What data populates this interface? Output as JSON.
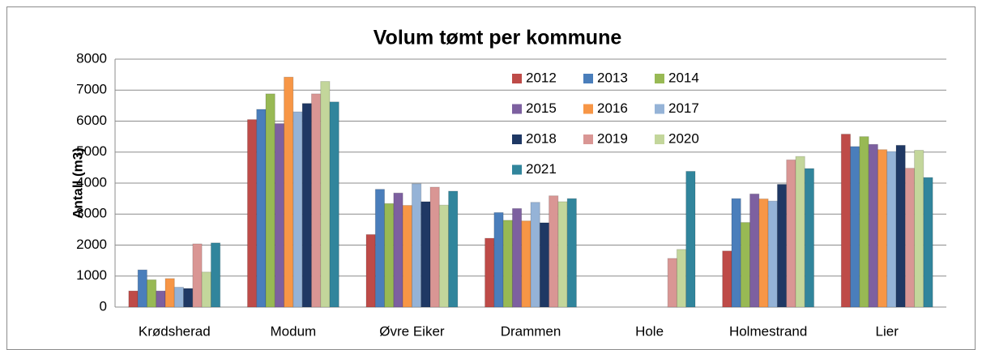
{
  "chart_data": {
    "type": "bar",
    "title": "Volum tømt per kommune",
    "y_label": "Antall (m3)",
    "categories": [
      "Krødsherad",
      "Modum",
      "Øvre Eiker",
      "Drammen",
      "Hole",
      "Holmestrand",
      "Lier"
    ],
    "series": [
      {
        "name": "2012",
        "color": "#be4b48",
        "values": [
          520,
          6050,
          2340,
          2220,
          null,
          1810,
          5580
        ]
      },
      {
        "name": "2013",
        "color": "#4a7ebb",
        "values": [
          1200,
          6380,
          3800,
          3050,
          null,
          3500,
          5180
        ]
      },
      {
        "name": "2014",
        "color": "#98b954",
        "values": [
          880,
          6880,
          3340,
          2800,
          null,
          2730,
          5500
        ]
      },
      {
        "name": "2015",
        "color": "#7d60a0",
        "values": [
          520,
          5920,
          3680,
          3180,
          null,
          3650,
          5250
        ]
      },
      {
        "name": "2016",
        "color": "#f79646",
        "values": [
          920,
          7420,
          3280,
          2780,
          null,
          3490,
          5080
        ]
      },
      {
        "name": "2017",
        "color": "#95b3d7",
        "values": [
          640,
          6300,
          3980,
          3380,
          null,
          3420,
          5020
        ]
      },
      {
        "name": "2018",
        "color": "#1f3864",
        "values": [
          600,
          6570,
          3400,
          2720,
          null,
          3960,
          5220
        ]
      },
      {
        "name": "2019",
        "color": "#d99694",
        "values": [
          2040,
          6880,
          3870,
          3590,
          1570,
          4750,
          4480
        ]
      },
      {
        "name": "2020",
        "color": "#c3d69b",
        "values": [
          1130,
          7280,
          3290,
          3400,
          1860,
          4860,
          5060
        ]
      },
      {
        "name": "2021",
        "color": "#31859c",
        "values": [
          2070,
          6620,
          3740,
          3500,
          4380,
          4470,
          4180
        ]
      }
    ],
    "ylim": [
      0,
      8000
    ],
    "yticks": [
      0,
      1000,
      2000,
      3000,
      4000,
      5000,
      6000,
      7000,
      8000
    ],
    "grid": true,
    "legend": "top-right"
  }
}
